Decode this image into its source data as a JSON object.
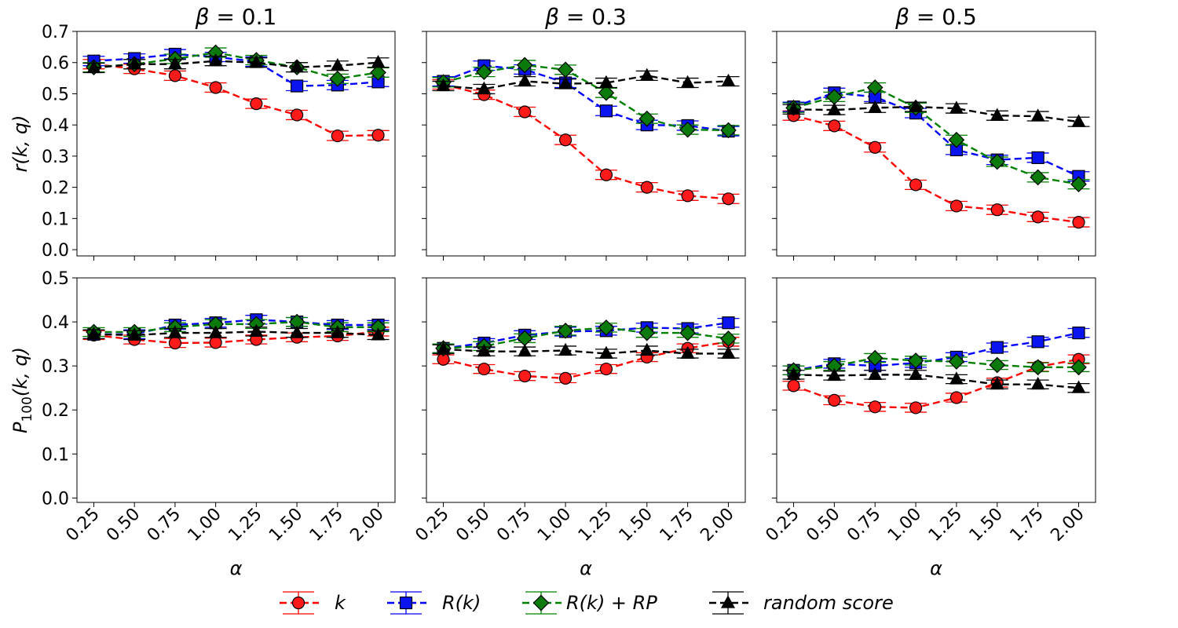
{
  "chart_data": {
    "type": "line",
    "layout": "2 rows x 3 columns, shared x and shared y per row",
    "x": [
      0.25,
      0.5,
      0.75,
      1.0,
      1.25,
      1.5,
      1.75,
      2.0
    ],
    "x_tick_labels": [
      "0.25",
      "0.50",
      "0.75",
      "1.00",
      "1.25",
      "1.50",
      "1.75",
      "2.00"
    ],
    "xlabel": "α",
    "columns": [
      {
        "title_prefix": "β = ",
        "beta": "0.1"
      },
      {
        "title_prefix": "β = ",
        "beta": "0.3"
      },
      {
        "title_prefix": "β = ",
        "beta": "0.5"
      }
    ],
    "rows": [
      {
        "ylabel_main": "r(k, q)",
        "ylabel_sub": "",
        "ylabel_tail": "",
        "ylim": [
          -0.02,
          0.7
        ],
        "y_ticks": [
          0.0,
          0.1,
          0.2,
          0.3,
          0.4,
          0.5,
          0.6,
          0.7
        ],
        "y_tick_labels": [
          "0.0",
          "0.1",
          "0.2",
          "0.3",
          "0.4",
          "0.5",
          "0.6",
          "0.7"
        ]
      },
      {
        "ylabel_main": "P",
        "ylabel_sub": "100",
        "ylabel_tail": "(k, q)",
        "ylim": [
          -0.01,
          0.5
        ],
        "y_ticks": [
          0.0,
          0.1,
          0.2,
          0.3,
          0.4,
          0.5
        ],
        "y_tick_labels": [
          "0.0",
          "0.1",
          "0.2",
          "0.3",
          "0.4",
          "0.5"
        ]
      }
    ],
    "series_styles": [
      {
        "key": "k",
        "name": "k",
        "color": "#ff0000",
        "fill": "#ff1a1a",
        "marker": "circle"
      },
      {
        "key": "rk",
        "name": "R(k)",
        "color": "#0000ff",
        "fill": "#0a14f0",
        "marker": "square"
      },
      {
        "key": "rkrp",
        "name": "R(k) + RP",
        "color": "#008000",
        "fill": "#0a7a0a",
        "marker": "diamond"
      },
      {
        "key": "rand",
        "name": "random score",
        "color": "#000000",
        "fill": "#000000",
        "marker": "triangle"
      }
    ],
    "panels": [
      {
        "row": 0,
        "col": 0,
        "series": {
          "k": {
            "values": [
              0.595,
              0.58,
              0.558,
              0.52,
              0.468,
              0.432,
              0.365,
              0.367
            ],
            "err": [
              0.015,
              0.015,
              0.015,
              0.015,
              0.015,
              0.015,
              0.015,
              0.015
            ]
          },
          "rk": {
            "values": [
              0.605,
              0.613,
              0.627,
              0.618,
              0.603,
              0.525,
              0.528,
              0.538
            ],
            "err": [
              0.015,
              0.015,
              0.015,
              0.015,
              0.015,
              0.015,
              0.015,
              0.015
            ]
          },
          "rkrp": {
            "values": [
              0.585,
              0.595,
              0.612,
              0.632,
              0.608,
              0.585,
              0.548,
              0.568
            ],
            "err": [
              0.015,
              0.015,
              0.015,
              0.015,
              0.015,
              0.015,
              0.015,
              0.015
            ]
          },
          "rand": {
            "values": [
              0.583,
              0.595,
              0.595,
              0.605,
              0.6,
              0.585,
              0.59,
              0.6
            ],
            "err": [
              0.015,
              0.015,
              0.015,
              0.015,
              0.015,
              0.015,
              0.015,
              0.015
            ]
          }
        }
      },
      {
        "row": 0,
        "col": 1,
        "series": {
          "k": {
            "values": [
              0.53,
              0.497,
              0.442,
              0.352,
              0.24,
              0.2,
              0.173,
              0.163
            ],
            "err": [
              0.015,
              0.015,
              0.015,
              0.015,
              0.015,
              0.015,
              0.015,
              0.015
            ]
          },
          "rk": {
            "values": [
              0.54,
              0.59,
              0.578,
              0.535,
              0.445,
              0.4,
              0.398,
              0.38
            ],
            "err": [
              0.015,
              0.015,
              0.015,
              0.015,
              0.015,
              0.015,
              0.015,
              0.015
            ]
          },
          "rkrp": {
            "values": [
              0.537,
              0.57,
              0.592,
              0.577,
              0.503,
              0.42,
              0.385,
              0.383
            ],
            "err": [
              0.015,
              0.015,
              0.015,
              0.015,
              0.015,
              0.015,
              0.015,
              0.015
            ]
          },
          "rand": {
            "values": [
              0.525,
              0.515,
              0.54,
              0.532,
              0.535,
              0.558,
              0.535,
              0.54
            ],
            "err": [
              0.015,
              0.015,
              0.015,
              0.015,
              0.015,
              0.015,
              0.015,
              0.015
            ]
          }
        }
      },
      {
        "row": 0,
        "col": 2,
        "series": {
          "k": {
            "values": [
              0.43,
              0.397,
              0.328,
              0.208,
              0.14,
              0.128,
              0.105,
              0.088
            ],
            "err": [
              0.015,
              0.015,
              0.015,
              0.015,
              0.015,
              0.015,
              0.015,
              0.015
            ]
          },
          "rk": {
            "values": [
              0.458,
              0.503,
              0.49,
              0.438,
              0.32,
              0.288,
              0.295,
              0.235
            ],
            "err": [
              0.015,
              0.015,
              0.015,
              0.015,
              0.015,
              0.015,
              0.015,
              0.015
            ]
          },
          "rkrp": {
            "values": [
              0.455,
              0.49,
              0.52,
              0.455,
              0.352,
              0.282,
              0.232,
              0.21
            ],
            "err": [
              0.015,
              0.015,
              0.015,
              0.015,
              0.015,
              0.015,
              0.015,
              0.015
            ]
          },
          "rand": {
            "values": [
              0.45,
              0.448,
              0.455,
              0.458,
              0.453,
              0.43,
              0.428,
              0.41
            ],
            "err": [
              0.015,
              0.015,
              0.015,
              0.015,
              0.015,
              0.015,
              0.015,
              0.015
            ]
          }
        }
      },
      {
        "row": 1,
        "col": 0,
        "series": {
          "k": {
            "values": [
              0.37,
              0.36,
              0.352,
              0.353,
              0.36,
              0.365,
              0.368,
              0.378
            ],
            "err": [
              0.01,
              0.01,
              0.01,
              0.01,
              0.01,
              0.01,
              0.01,
              0.01
            ]
          },
          "rk": {
            "values": [
              0.372,
              0.372,
              0.393,
              0.398,
              0.405,
              0.4,
              0.393,
              0.393
            ],
            "err": [
              0.01,
              0.01,
              0.01,
              0.01,
              0.01,
              0.01,
              0.01,
              0.01
            ]
          },
          "rkrp": {
            "values": [
              0.377,
              0.377,
              0.388,
              0.395,
              0.395,
              0.4,
              0.388,
              0.388
            ],
            "err": [
              0.01,
              0.01,
              0.01,
              0.01,
              0.01,
              0.01,
              0.01,
              0.01
            ]
          },
          "rand": {
            "values": [
              0.372,
              0.37,
              0.375,
              0.375,
              0.378,
              0.375,
              0.375,
              0.37
            ],
            "err": [
              0.01,
              0.01,
              0.01,
              0.01,
              0.01,
              0.01,
              0.01,
              0.01
            ]
          }
        }
      },
      {
        "row": 1,
        "col": 1,
        "series": {
          "k": {
            "values": [
              0.315,
              0.293,
              0.277,
              0.272,
              0.293,
              0.32,
              0.34,
              0.355
            ],
            "err": [
              0.01,
              0.01,
              0.01,
              0.01,
              0.01,
              0.01,
              0.01,
              0.01
            ]
          },
          "rk": {
            "values": [
              0.34,
              0.352,
              0.37,
              0.378,
              0.38,
              0.387,
              0.385,
              0.398
            ],
            "err": [
              0.01,
              0.01,
              0.01,
              0.01,
              0.01,
              0.01,
              0.01,
              0.01
            ]
          },
          "rkrp": {
            "values": [
              0.34,
              0.345,
              0.363,
              0.38,
              0.387,
              0.375,
              0.375,
              0.362
            ],
            "err": [
              0.01,
              0.01,
              0.01,
              0.01,
              0.01,
              0.01,
              0.01,
              0.01
            ]
          },
          "rand": {
            "values": [
              0.338,
              0.333,
              0.333,
              0.335,
              0.328,
              0.335,
              0.328,
              0.328
            ],
            "err": [
              0.01,
              0.01,
              0.01,
              0.01,
              0.01,
              0.01,
              0.01,
              0.01
            ]
          }
        }
      },
      {
        "row": 1,
        "col": 2,
        "series": {
          "k": {
            "values": [
              0.255,
              0.222,
              0.207,
              0.205,
              0.228,
              0.262,
              0.298,
              0.315
            ],
            "err": [
              0.01,
              0.01,
              0.01,
              0.01,
              0.01,
              0.01,
              0.01,
              0.01
            ]
          },
          "rk": {
            "values": [
              0.29,
              0.305,
              0.3,
              0.307,
              0.32,
              0.342,
              0.355,
              0.375
            ],
            "err": [
              0.01,
              0.01,
              0.01,
              0.01,
              0.01,
              0.01,
              0.01,
              0.01
            ]
          },
          "rkrp": {
            "values": [
              0.29,
              0.3,
              0.318,
              0.312,
              0.31,
              0.302,
              0.297,
              0.297
            ],
            "err": [
              0.01,
              0.01,
              0.01,
              0.01,
              0.01,
              0.01,
              0.01,
              0.01
            ]
          },
          "rand": {
            "values": [
              0.28,
              0.278,
              0.28,
              0.28,
              0.27,
              0.258,
              0.258,
              0.25
            ],
            "err": [
              0.01,
              0.01,
              0.01,
              0.01,
              0.01,
              0.01,
              0.01,
              0.01
            ]
          }
        }
      }
    ],
    "legend": {
      "placement": "bottom-center",
      "entries": [
        {
          "series": "k",
          "label_main": "k",
          "label_tail": ""
        },
        {
          "series": "rk",
          "label_main": "R(k)",
          "label_tail": ""
        },
        {
          "series": "rkrp",
          "label_main": "R(k) + RP",
          "label_tail": ""
        },
        {
          "series": "rand",
          "label_main": "random score",
          "label_tail": ""
        }
      ]
    }
  }
}
